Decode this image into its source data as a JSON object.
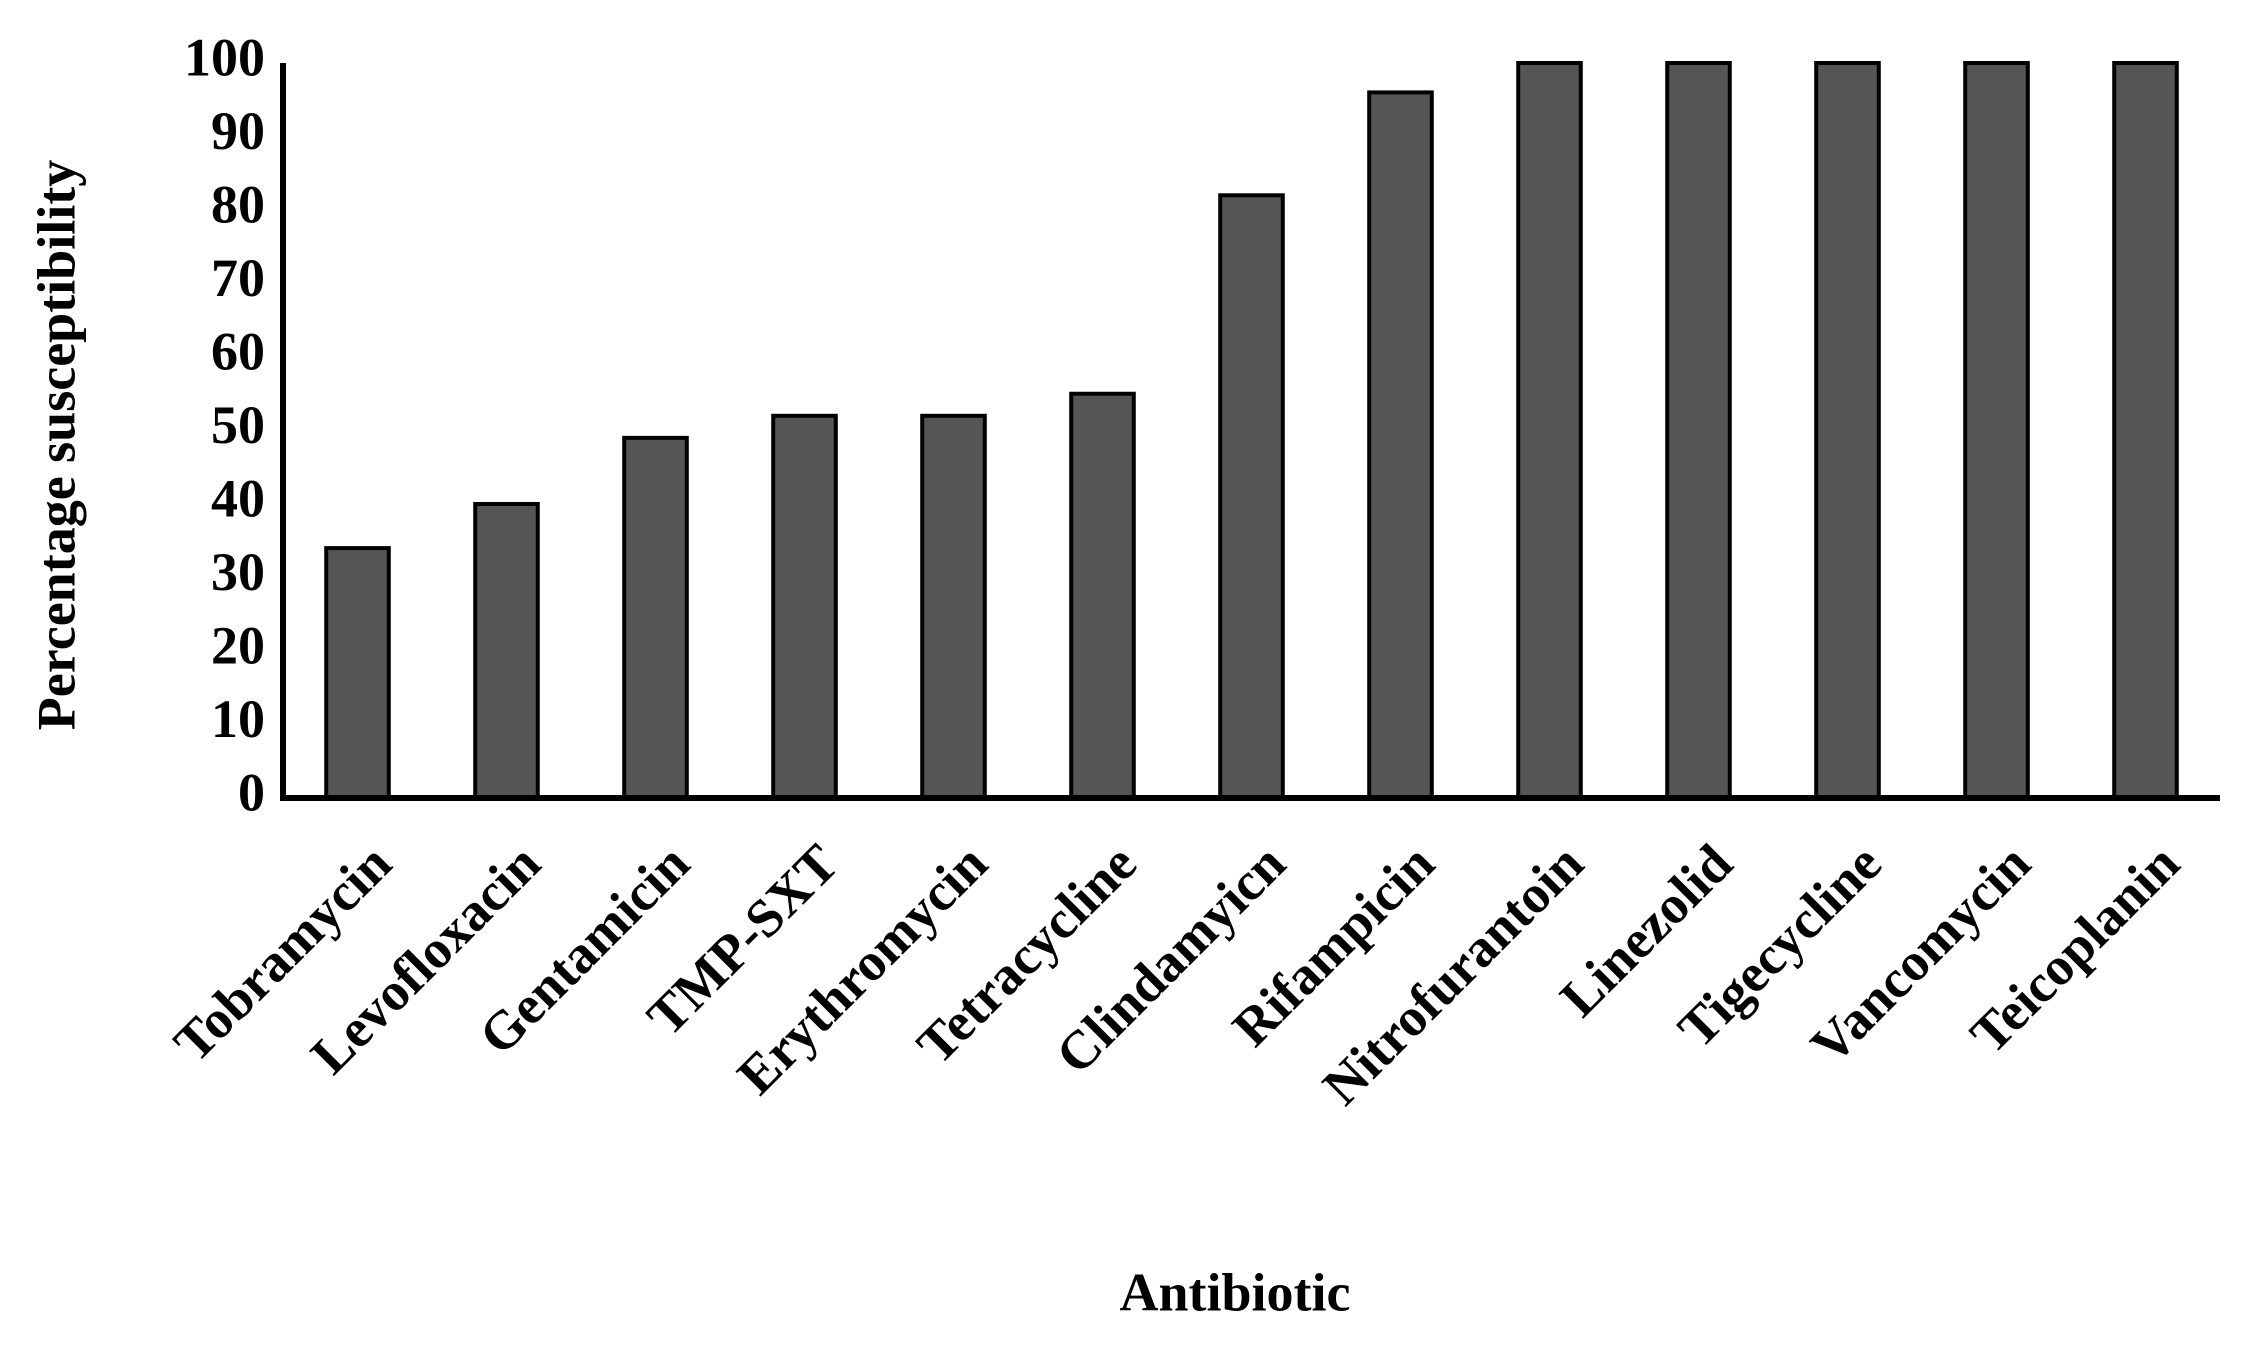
{
  "chart_data": {
    "type": "bar",
    "x_label": "Antibiotic",
    "y_label": "Percentage susceptibility",
    "categories": [
      "Tobramycin",
      "Levofloxacin",
      "Gentamicin",
      "TMP-SXT",
      "Erythromycin",
      "Tetracycline",
      "Clindamyicn",
      "Rifampicin",
      "Nitrofurantoin",
      "Linezolid",
      "Tigecycline",
      "Vancomycin",
      "Teicoplanin"
    ],
    "values": [
      34,
      40,
      49,
      52,
      52,
      55,
      82,
      96,
      100,
      100,
      100,
      100,
      100
    ],
    "color": "#555555",
    "ylim": [
      0,
      100
    ],
    "yticks": [
      0,
      10,
      20,
      30,
      40,
      50,
      60,
      70,
      80,
      90,
      100
    ],
    "grid": false
  }
}
